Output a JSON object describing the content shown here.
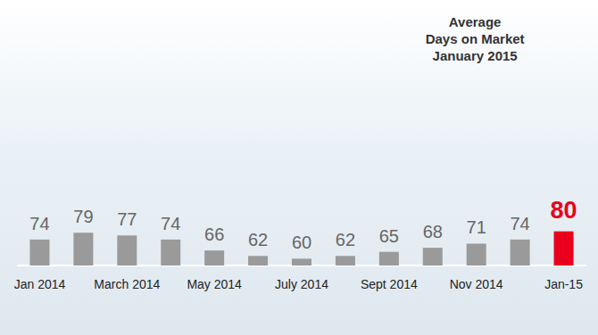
{
  "chart_data": {
    "type": "bar",
    "title": "Average\nDays on Market\nJanuary 2015",
    "categories": [
      "Jan 2014",
      null,
      "March 2014",
      null,
      "May 2014",
      null,
      "July 2014",
      null,
      "Sept 2014",
      null,
      "Nov 2014",
      null,
      "Jan-15"
    ],
    "values": [
      74,
      79,
      77,
      74,
      66,
      62,
      60,
      62,
      65,
      68,
      71,
      74,
      80
    ],
    "colors": [
      "#9a9a9a",
      "#9a9a9a",
      "#9a9a9a",
      "#9a9a9a",
      "#9a9a9a",
      "#9a9a9a",
      "#9a9a9a",
      "#9a9a9a",
      "#9a9a9a",
      "#9a9a9a",
      "#9a9a9a",
      "#9a9a9a",
      "#e8001c"
    ],
    "ylim": [
      55,
      85
    ],
    "grid": false,
    "data_labels": true,
    "tick_labels": "x"
  }
}
